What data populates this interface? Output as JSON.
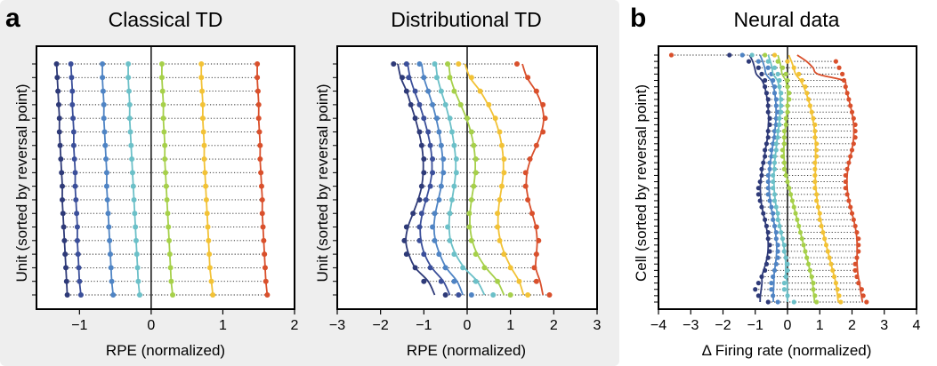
{
  "panel_labels": {
    "a": "a",
    "b": "b"
  },
  "chart_data": [
    {
      "type": "scatter",
      "id": "classical",
      "title": "Classical TD",
      "xlabel": "RPE (normalized)",
      "ylabel": "Unit (sorted by reversal point)",
      "xlim": [
        -1.6,
        2
      ],
      "xticks": [
        -1,
        0,
        1,
        2
      ],
      "tick_labels": [
        "−1",
        "0",
        "1",
        "2"
      ],
      "n_rows": 18,
      "series": [
        {
          "name": "unit-group-1",
          "color": "#2e3a78",
          "values": [
            -1.32,
            -1.31,
            -1.3,
            -1.29,
            -1.28,
            -1.28,
            -1.27,
            -1.26,
            -1.25,
            -1.24,
            -1.24,
            -1.23,
            -1.22,
            -1.21,
            -1.2,
            -1.19,
            -1.18,
            -1.17
          ]
        },
        {
          "name": "unit-group-2",
          "color": "#3b4f9a",
          "values": [
            -1.12,
            -1.11,
            -1.1,
            -1.1,
            -1.09,
            -1.08,
            -1.08,
            -1.07,
            -1.06,
            -1.06,
            -1.05,
            -1.04,
            -1.03,
            -1.03,
            -1.02,
            -1.01,
            -1.0,
            -0.98
          ]
        },
        {
          "name": "unit-group-3",
          "color": "#4f84c4",
          "values": [
            -0.68,
            -0.68,
            -0.67,
            -0.66,
            -0.66,
            -0.65,
            -0.64,
            -0.63,
            -0.62,
            -0.62,
            -0.61,
            -0.6,
            -0.59,
            -0.58,
            -0.57,
            -0.56,
            -0.55,
            -0.53
          ]
        },
        {
          "name": "unit-group-4",
          "color": "#6cc0c8",
          "values": [
            -0.32,
            -0.32,
            -0.31,
            -0.3,
            -0.3,
            -0.29,
            -0.28,
            -0.27,
            -0.26,
            -0.25,
            -0.24,
            -0.23,
            -0.22,
            -0.21,
            -0.2,
            -0.19,
            -0.18,
            -0.16
          ]
        },
        {
          "name": "unit-group-5",
          "color": "#a6d04a",
          "values": [
            0.15,
            0.15,
            0.16,
            0.17,
            0.17,
            0.18,
            0.19,
            0.19,
            0.2,
            0.21,
            0.22,
            0.23,
            0.24,
            0.25,
            0.26,
            0.27,
            0.28,
            0.3
          ]
        },
        {
          "name": "unit-group-6",
          "color": "#f2c236",
          "values": [
            0.7,
            0.7,
            0.71,
            0.72,
            0.72,
            0.73,
            0.74,
            0.74,
            0.75,
            0.76,
            0.77,
            0.78,
            0.79,
            0.8,
            0.81,
            0.82,
            0.84,
            0.86
          ]
        },
        {
          "name": "unit-group-7",
          "color": "#d9502c",
          "values": [
            1.48,
            1.48,
            1.49,
            1.5,
            1.5,
            1.51,
            1.52,
            1.52,
            1.53,
            1.54,
            1.55,
            1.55,
            1.56,
            1.57,
            1.58,
            1.59,
            1.6,
            1.62
          ]
        }
      ]
    },
    {
      "type": "scatter",
      "id": "distributional",
      "title": "Distributional TD",
      "xlabel": "RPE (normalized)",
      "ylabel": "Unit (sorted by reversal point)",
      "xlim": [
        -3,
        3
      ],
      "xticks": [
        -3,
        -2,
        -1,
        0,
        1,
        2,
        3
      ],
      "tick_labels": [
        "−3",
        "−2",
        "−1",
        "0",
        "1",
        "2",
        "3"
      ],
      "n_rows": 18,
      "series": [
        {
          "name": "unit-group-1",
          "color": "#2e3a78",
          "values": [
            -1.7,
            -1.5,
            -1.4,
            -1.3,
            -1.2,
            -1.1,
            -1.05,
            -1.0,
            -1.0,
            -1.05,
            -1.1,
            -1.25,
            -1.4,
            -1.45,
            -1.4,
            -1.2,
            -1.0,
            -0.5
          ]
        },
        {
          "name": "unit-group-2",
          "color": "#3b4f9a",
          "values": [
            -1.4,
            -1.35,
            -1.2,
            -1.1,
            -1.0,
            -0.9,
            -0.85,
            -0.8,
            -0.8,
            -0.85,
            -0.95,
            -1.05,
            -1.1,
            -1.1,
            -1.0,
            -0.85,
            -0.6,
            -0.2
          ]
        },
        {
          "name": "unit-group-3",
          "color": "#4f84c4",
          "values": [
            -1.1,
            -1.0,
            -0.9,
            -0.8,
            -0.7,
            -0.65,
            -0.6,
            -0.55,
            -0.55,
            -0.6,
            -0.65,
            -0.75,
            -0.8,
            -0.75,
            -0.65,
            -0.5,
            -0.3,
            0.1
          ]
        },
        {
          "name": "unit-group-4",
          "color": "#6cc0c8",
          "values": [
            -0.75,
            -0.7,
            -0.6,
            -0.5,
            -0.4,
            -0.35,
            -0.3,
            -0.25,
            -0.25,
            -0.3,
            -0.35,
            -0.4,
            -0.45,
            -0.4,
            -0.3,
            -0.1,
            0.2,
            0.6
          ]
        },
        {
          "name": "unit-group-5",
          "color": "#a6d04a",
          "values": [
            -0.45,
            -0.4,
            -0.3,
            -0.15,
            0.0,
            0.1,
            0.15,
            0.2,
            0.2,
            0.15,
            0.1,
            0.05,
            0.05,
            0.1,
            0.2,
            0.4,
            0.7,
            1.0
          ]
        },
        {
          "name": "unit-group-6",
          "color": "#f2c236",
          "values": [
            -0.2,
            0.1,
            0.3,
            0.5,
            0.65,
            0.75,
            0.8,
            0.85,
            0.85,
            0.8,
            0.75,
            0.7,
            0.7,
            0.75,
            0.85,
            1.0,
            1.2,
            1.4
          ]
        },
        {
          "name": "unit-group-7",
          "color": "#d9502c",
          "values": [
            1.15,
            1.4,
            1.6,
            1.75,
            1.8,
            1.75,
            1.6,
            1.45,
            1.35,
            1.35,
            1.4,
            1.5,
            1.6,
            1.65,
            1.6,
            1.55,
            1.6,
            1.9
          ]
        }
      ]
    },
    {
      "type": "scatter",
      "id": "neural",
      "title": "Neural data",
      "xlabel": "Δ Firing rate (normalized)",
      "ylabel": "Cell (sorted by reversal point)",
      "xlim": [
        -4,
        4
      ],
      "xticks": [
        -4,
        -3,
        -2,
        -1,
        0,
        1,
        2,
        3,
        4
      ],
      "tick_labels": [
        "−4",
        "−3",
        "−2",
        "−1",
        "0",
        "1",
        "2",
        "3",
        "4"
      ],
      "n_rows": 40,
      "series": [
        {
          "name": "cell-group-1",
          "color": "#2e3a78",
          "values": [
            -1.8,
            -1.2,
            -0.9,
            -0.8,
            -0.7,
            -0.7,
            -0.65,
            -0.6,
            -0.6,
            -0.6,
            -0.55,
            -0.55,
            -0.6,
            -0.6,
            -0.65,
            -0.7,
            -0.7,
            -0.75,
            -0.8,
            -0.8,
            -0.85,
            -0.9,
            -0.9,
            -0.85,
            -0.8,
            -0.75,
            -0.7,
            -0.65,
            -0.6,
            -0.6,
            -0.55,
            -0.55,
            -0.6,
            -0.65,
            -0.7,
            -0.8,
            -0.9,
            -1.0,
            -0.9,
            -0.6
          ]
        },
        {
          "name": "cell-group-2",
          "color": "#4f84c4",
          "values": [
            -1.4,
            -0.9,
            -0.6,
            -0.5,
            -0.45,
            -0.4,
            -0.4,
            -0.35,
            -0.35,
            -0.3,
            -0.35,
            -0.35,
            -0.4,
            -0.4,
            -0.45,
            -0.5,
            -0.5,
            -0.55,
            -0.55,
            -0.6,
            -0.6,
            -0.6,
            -0.6,
            -0.55,
            -0.5,
            -0.45,
            -0.45,
            -0.4,
            -0.35,
            -0.35,
            -0.3,
            -0.3,
            -0.3,
            -0.35,
            -0.4,
            -0.45,
            -0.5,
            -0.5,
            -0.45,
            -0.3
          ]
        },
        {
          "name": "cell-group-3",
          "color": "#6cc0c8",
          "values": [
            -1.1,
            -0.6,
            -0.4,
            -0.3,
            -0.25,
            -0.25,
            -0.2,
            -0.2,
            -0.2,
            -0.2,
            -0.25,
            -0.25,
            -0.3,
            -0.3,
            -0.35,
            -0.35,
            -0.4,
            -0.4,
            -0.4,
            -0.45,
            -0.45,
            -0.45,
            -0.4,
            -0.4,
            -0.35,
            -0.3,
            -0.3,
            -0.25,
            -0.2,
            -0.15,
            -0.1,
            -0.1,
            -0.05,
            0.0,
            0.0,
            -0.05,
            -0.1,
            -0.1,
            0.0,
            0.2
          ]
        },
        {
          "name": "cell-group-4",
          "color": "#a6d04a",
          "values": [
            -0.7,
            -0.3,
            -0.15,
            -0.05,
            0.0,
            0.0,
            0.05,
            0.05,
            0.0,
            0.0,
            -0.05,
            -0.05,
            -0.1,
            -0.1,
            -0.1,
            -0.15,
            -0.15,
            -0.1,
            -0.1,
            -0.05,
            0.0,
            0.05,
            0.1,
            0.15,
            0.2,
            0.25,
            0.3,
            0.35,
            0.4,
            0.45,
            0.5,
            0.55,
            0.6,
            0.65,
            0.7,
            0.75,
            0.8,
            0.8,
            0.85,
            0.9
          ]
        },
        {
          "name": "cell-group-5",
          "color": "#f2c236",
          "values": [
            -0.4,
            0.0,
            0.2,
            0.35,
            0.45,
            0.55,
            0.6,
            0.65,
            0.7,
            0.75,
            0.8,
            0.85,
            0.85,
            0.85,
            0.9,
            0.9,
            0.9,
            0.85,
            0.85,
            0.85,
            0.85,
            0.85,
            0.9,
            0.9,
            0.95,
            1.0,
            1.0,
            1.05,
            1.1,
            1.15,
            1.2,
            1.25,
            1.3,
            1.35,
            1.4,
            1.45,
            1.5,
            1.55,
            1.6,
            1.65
          ]
        },
        {
          "name": "cell-group-6",
          "color": "#d9502c",
          "values": [
            -3.6,
            1.5,
            1.6,
            1.7,
            1.75,
            1.8,
            1.85,
            1.9,
            1.95,
            2.0,
            2.05,
            2.1,
            2.1,
            2.1,
            2.05,
            2.0,
            1.95,
            1.9,
            1.85,
            1.8,
            1.8,
            1.8,
            1.85,
            1.9,
            1.95,
            2.0,
            2.05,
            2.1,
            2.15,
            2.2,
            2.2,
            2.2,
            2.15,
            2.1,
            2.1,
            2.15,
            2.2,
            2.3,
            2.35,
            2.45
          ]
        }
      ]
    }
  ]
}
